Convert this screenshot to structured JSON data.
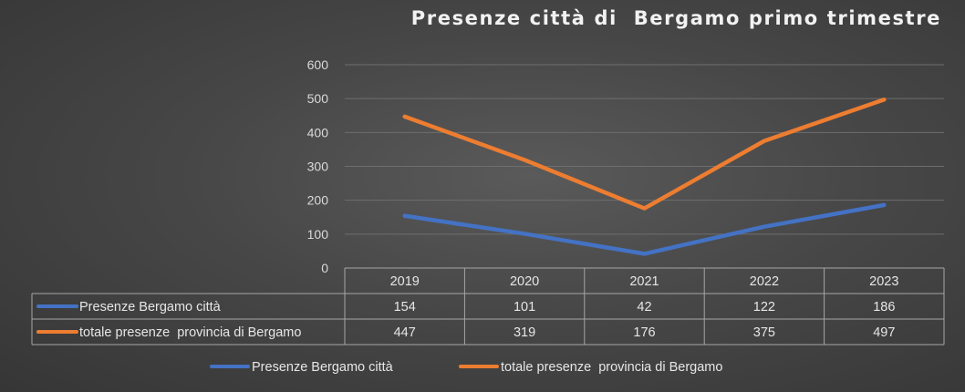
{
  "chart_data": {
    "type": "line",
    "title": "Presenze città di  Bergamo primo trimestre",
    "categories": [
      "2019",
      "2020",
      "2021",
      "2022",
      "2023"
    ],
    "series": [
      {
        "name": "Presenze Bergamo città",
        "values": [
          154,
          101,
          42,
          122,
          186
        ],
        "color": "#4472C4"
      },
      {
        "name": "totale presenze  provincia di Bergamo",
        "values": [
          447,
          319,
          176,
          375,
          497
        ],
        "color": "#ED7D31"
      }
    ],
    "yticks": [
      "0",
      "100",
      "200",
      "300",
      "400",
      "500",
      "600"
    ],
    "ylim": [
      0,
      600
    ],
    "grid": true,
    "data_table": true,
    "legend": "bottom"
  }
}
